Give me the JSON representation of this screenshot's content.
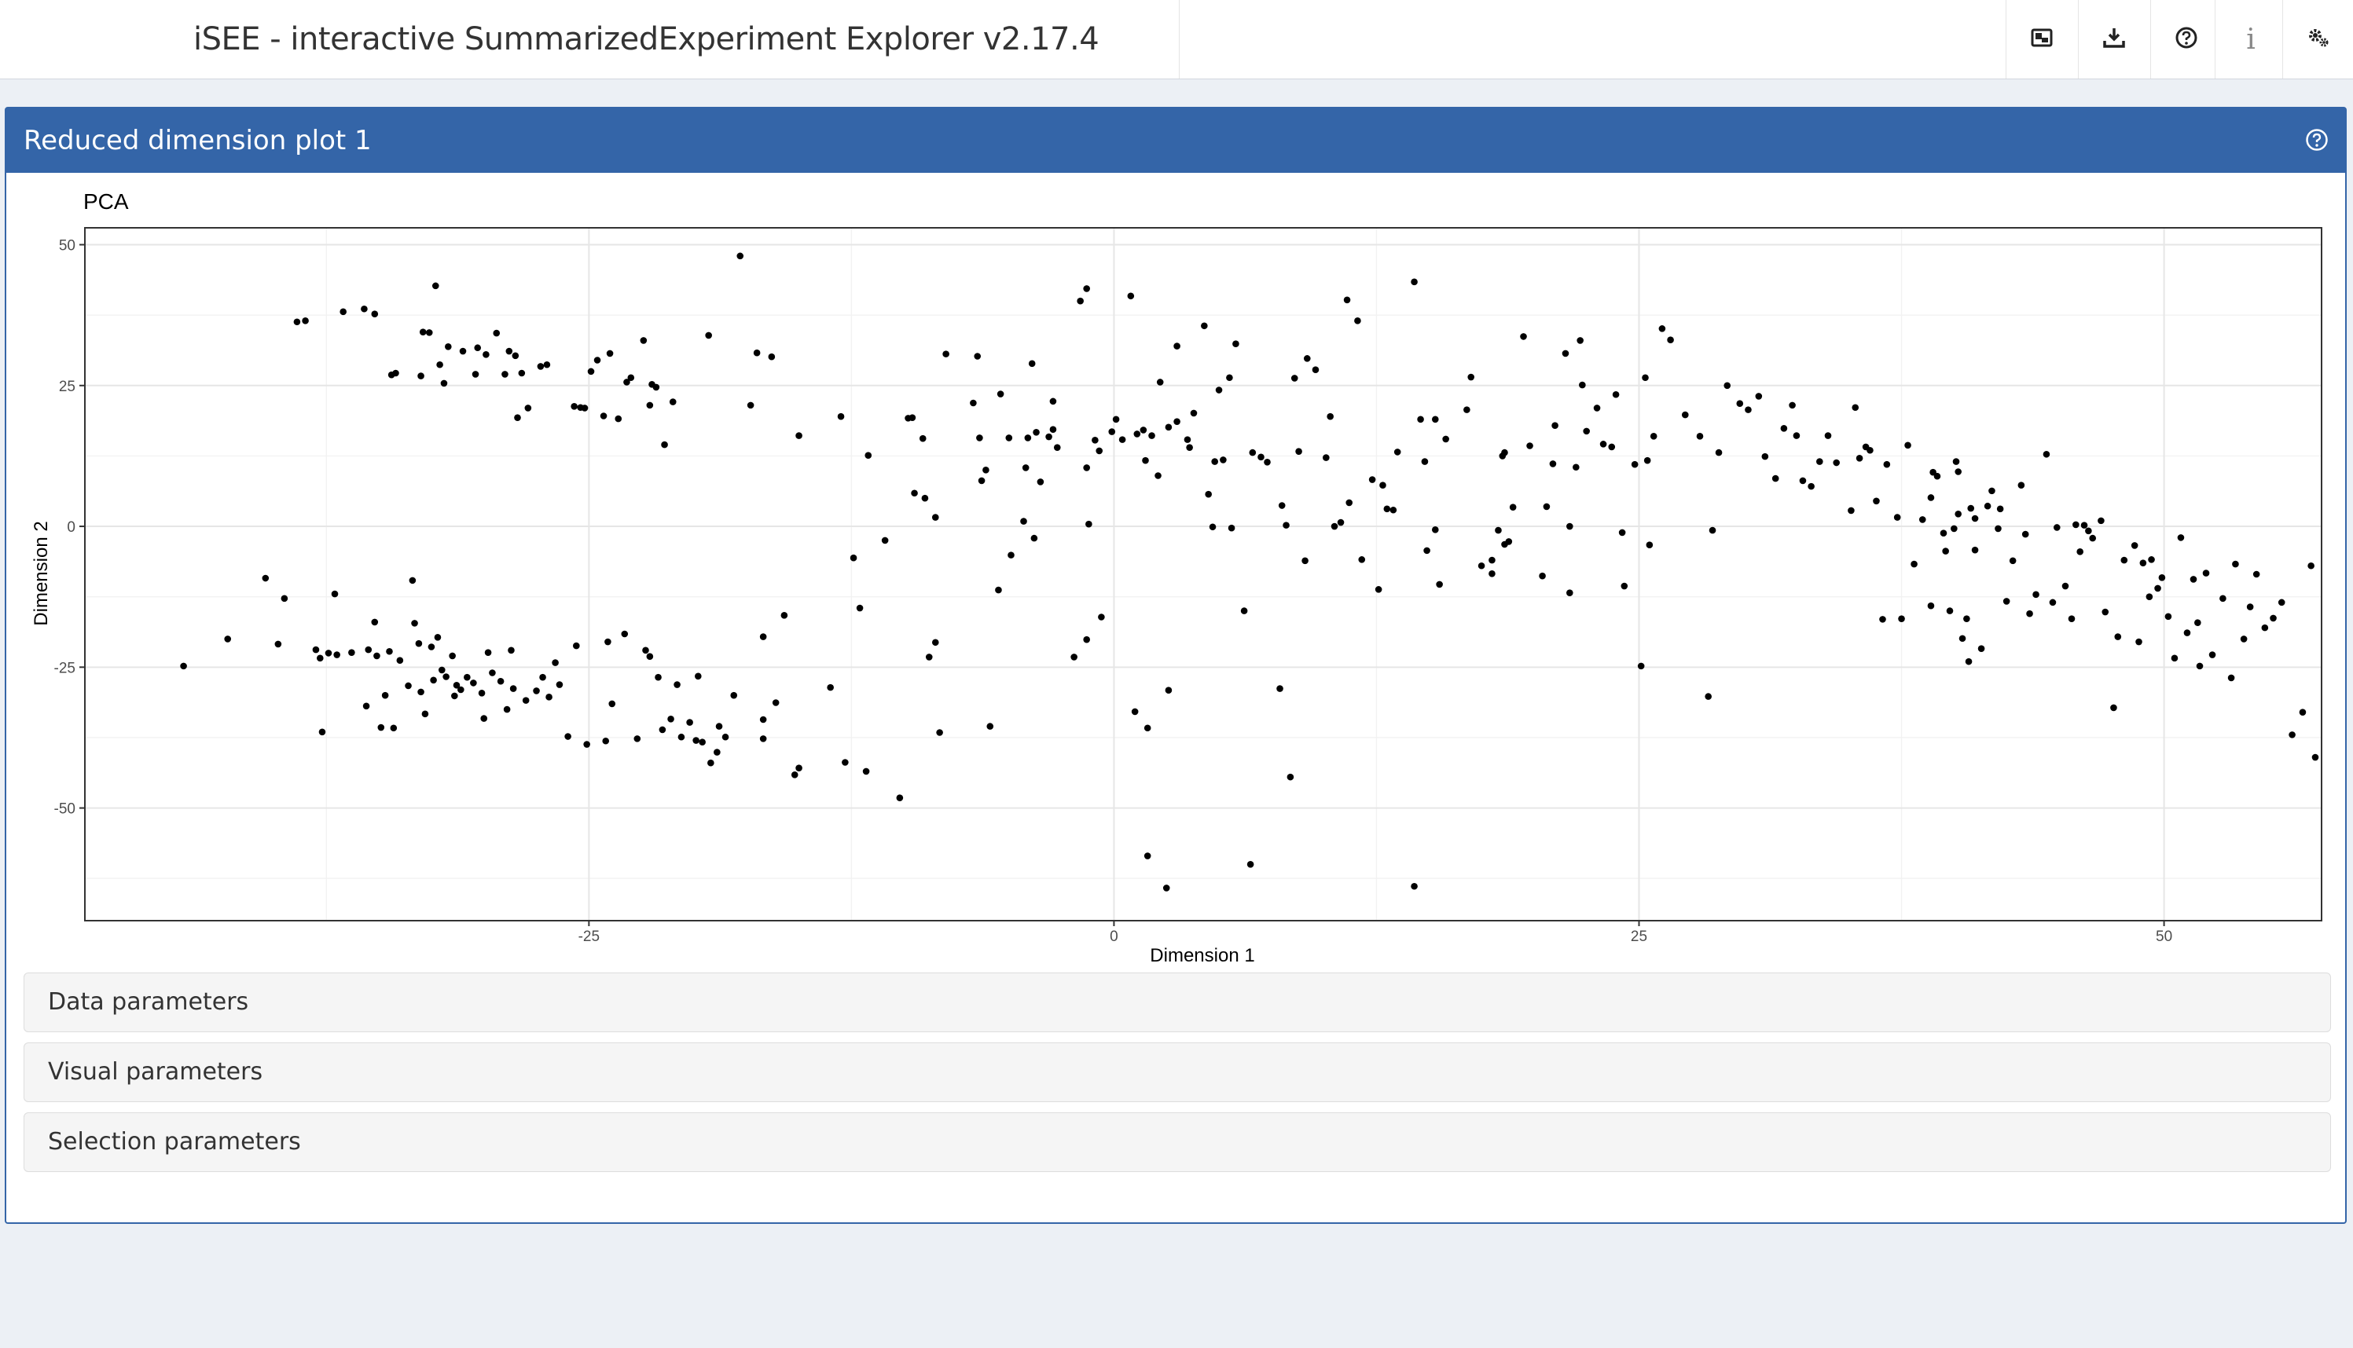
{
  "header": {
    "title": "iSEE - interactive SummarizedExperiment Explorer v2.17.4",
    "buttons": [
      {
        "name": "export-icon"
      },
      {
        "name": "download-icon"
      },
      {
        "name": "help-icon"
      },
      {
        "name": "info-icon",
        "glyph": "i"
      },
      {
        "name": "settings-icon"
      }
    ]
  },
  "panel": {
    "title": "Reduced dimension plot 1",
    "header_color": "#3465a8"
  },
  "accordions": {
    "data": "Data parameters",
    "visual": "Visual parameters",
    "selection": "Selection parameters"
  },
  "chart_data": {
    "type": "scatter",
    "title": "PCA",
    "xlabel": "Dimension 1",
    "ylabel": "Dimension 2",
    "xlim": [
      -49,
      57.5
    ],
    "ylim": [
      -70,
      53
    ],
    "xticks": [
      -25,
      0,
      25,
      50
    ],
    "yticks": [
      50,
      25,
      0,
      -25,
      -50
    ],
    "grid": true,
    "point_color": "#000000",
    "points": [
      [
        -44.3,
        -24.8
      ],
      [
        -42.2,
        -20.0
      ],
      [
        -40.4,
        -9.2
      ],
      [
        -39.5,
        -12.8
      ],
      [
        -39.8,
        -20.9
      ],
      [
        -38.9,
        36.3
      ],
      [
        -38.5,
        36.5
      ],
      [
        -38.0,
        -21.9
      ],
      [
        -37.8,
        -23.4
      ],
      [
        -37.7,
        -36.5
      ],
      [
        -37.4,
        -22.5
      ],
      [
        -37.1,
        -12.0
      ],
      [
        -37.0,
        -22.8
      ],
      [
        -36.7,
        38.1
      ],
      [
        -36.3,
        -22.4
      ],
      [
        -35.7,
        38.6
      ],
      [
        -35.6,
        -31.9
      ],
      [
        -35.5,
        -21.9
      ],
      [
        -35.2,
        37.7
      ],
      [
        -35.2,
        -17.0
      ],
      [
        -35.1,
        -23.0
      ],
      [
        -34.9,
        -35.7
      ],
      [
        -34.7,
        -30.0
      ],
      [
        -34.5,
        -22.2
      ],
      [
        -34.4,
        26.9
      ],
      [
        -34.3,
        -35.8
      ],
      [
        -34.2,
        27.2
      ],
      [
        -34.0,
        -23.8
      ],
      [
        -33.6,
        -28.3
      ],
      [
        -33.4,
        -9.6
      ],
      [
        -33.3,
        -17.2
      ],
      [
        -33.1,
        -20.8
      ],
      [
        -33.0,
        26.7
      ],
      [
        -33.0,
        -29.4
      ],
      [
        -32.9,
        34.5
      ],
      [
        -32.8,
        -33.3
      ],
      [
        -32.6,
        34.4
      ],
      [
        -32.5,
        -21.4
      ],
      [
        -32.4,
        -27.3
      ],
      [
        -32.3,
        42.7
      ],
      [
        -32.2,
        -19.7
      ],
      [
        -32.1,
        28.7
      ],
      [
        -32.0,
        -25.5
      ],
      [
        -31.9,
        25.4
      ],
      [
        -31.8,
        -26.7
      ],
      [
        -31.7,
        31.9
      ],
      [
        -31.5,
        -23.0
      ],
      [
        -31.4,
        -30.1
      ],
      [
        -31.3,
        -28.2
      ],
      [
        -31.1,
        -29.0
      ],
      [
        -31.0,
        31.1
      ],
      [
        -30.8,
        -26.8
      ],
      [
        -30.5,
        -27.8
      ],
      [
        -30.4,
        27.0
      ],
      [
        -30.3,
        31.7
      ],
      [
        -30.1,
        -29.6
      ],
      [
        -30.0,
        -34.1
      ],
      [
        -29.9,
        30.5
      ],
      [
        -29.8,
        -22.4
      ],
      [
        -29.6,
        -26.0
      ],
      [
        -29.4,
        34.3
      ],
      [
        -29.2,
        -27.5
      ],
      [
        -29.0,
        27.0
      ],
      [
        -28.9,
        -32.5
      ],
      [
        -28.8,
        31.1
      ],
      [
        -28.7,
        -22.0
      ],
      [
        -28.6,
        -28.8
      ],
      [
        -28.5,
        30.3
      ],
      [
        -28.4,
        19.3
      ],
      [
        -28.2,
        27.2
      ],
      [
        -28.0,
        -30.9
      ],
      [
        -27.9,
        21.0
      ],
      [
        -27.5,
        -29.2
      ],
      [
        -27.3,
        28.4
      ],
      [
        -27.2,
        -26.8
      ],
      [
        -27.0,
        28.7
      ],
      [
        -26.9,
        -30.3
      ],
      [
        -26.6,
        -24.2
      ],
      [
        -26.4,
        -28.1
      ],
      [
        -26.0,
        -37.3
      ],
      [
        -25.7,
        21.3
      ],
      [
        -25.6,
        -21.2
      ],
      [
        -25.4,
        21.1
      ],
      [
        -25.2,
        21.0
      ],
      [
        -25.1,
        -38.7
      ],
      [
        -24.9,
        27.5
      ],
      [
        -24.6,
        29.5
      ],
      [
        -24.3,
        19.6
      ],
      [
        -24.2,
        -38.1
      ],
      [
        -24.1,
        -20.5
      ],
      [
        -24.0,
        30.7
      ],
      [
        -23.9,
        -31.5
      ],
      [
        -23.6,
        19.1
      ],
      [
        -23.3,
        -19.1
      ],
      [
        -23.2,
        25.6
      ],
      [
        -23.0,
        26.4
      ],
      [
        -22.7,
        -37.7
      ],
      [
        -22.4,
        33.0
      ],
      [
        -22.3,
        -22.0
      ],
      [
        -22.1,
        -23.1
      ],
      [
        -22.1,
        21.5
      ],
      [
        -22.0,
        25.2
      ],
      [
        -21.8,
        24.7
      ],
      [
        -21.7,
        -26.8
      ],
      [
        -21.5,
        -36.1
      ],
      [
        -21.4,
        14.5
      ],
      [
        -21.1,
        -34.2
      ],
      [
        -21.0,
        22.1
      ],
      [
        -20.8,
        -28.1
      ],
      [
        -20.6,
        -37.4
      ],
      [
        -20.2,
        -34.8
      ],
      [
        -19.9,
        -38.0
      ],
      [
        -19.8,
        -26.6
      ],
      [
        -19.6,
        -38.3
      ],
      [
        -19.3,
        33.9
      ],
      [
        -19.2,
        -42.0
      ],
      [
        -18.9,
        -40.1
      ],
      [
        -18.8,
        -35.5
      ],
      [
        -18.5,
        -37.4
      ],
      [
        -18.1,
        -30.0
      ],
      [
        -17.8,
        48.0
      ],
      [
        -17.3,
        21.5
      ],
      [
        -17.0,
        30.8
      ],
      [
        -16.7,
        -37.7
      ],
      [
        -16.7,
        -34.3
      ],
      [
        -16.7,
        -19.6
      ],
      [
        -16.3,
        30.1
      ],
      [
        -16.1,
        -31.3
      ],
      [
        -15.7,
        -15.8
      ],
      [
        -15.2,
        -44.1
      ],
      [
        -15.0,
        -42.9
      ],
      [
        -15.0,
        16.1
      ],
      [
        -13.5,
        -28.6
      ],
      [
        -13.0,
        19.5
      ],
      [
        -12.8,
        -41.9
      ],
      [
        -12.4,
        -5.6
      ],
      [
        -12.1,
        -14.5
      ],
      [
        -11.8,
        -43.5
      ],
      [
        -11.7,
        12.6
      ],
      [
        -10.9,
        -2.5
      ],
      [
        -10.2,
        -48.2
      ],
      [
        -9.8,
        19.2
      ],
      [
        -9.6,
        19.3
      ],
      [
        -9.5,
        5.9
      ],
      [
        -9.1,
        15.6
      ],
      [
        -9.0,
        5.0
      ],
      [
        -8.8,
        -23.2
      ],
      [
        -8.5,
        -20.6
      ],
      [
        -8.5,
        1.6
      ],
      [
        -8.3,
        -36.6
      ],
      [
        -8.0,
        30.6
      ],
      [
        -6.7,
        21.9
      ],
      [
        -6.5,
        30.2
      ],
      [
        -6.4,
        15.7
      ],
      [
        -6.3,
        8.1
      ],
      [
        -6.1,
        10.0
      ],
      [
        -5.9,
        -35.5
      ],
      [
        -5.5,
        -11.3
      ],
      [
        -5.4,
        23.5
      ],
      [
        -5.0,
        15.7
      ],
      [
        -4.9,
        -5.1
      ],
      [
        -4.3,
        0.9
      ],
      [
        -4.2,
        10.4
      ],
      [
        -4.1,
        15.7
      ],
      [
        -3.9,
        28.9
      ],
      [
        -3.8,
        -2.1
      ],
      [
        -3.7,
        16.7
      ],
      [
        -3.5,
        7.9
      ],
      [
        -3.1,
        15.9
      ],
      [
        -2.9,
        17.2
      ],
      [
        -2.9,
        22.2
      ],
      [
        -2.7,
        14.0
      ],
      [
        -1.9,
        -23.2
      ],
      [
        -1.6,
        40.0
      ],
      [
        -1.3,
        -20.1
      ],
      [
        -1.3,
        10.4
      ],
      [
        -1.3,
        42.2
      ],
      [
        -1.2,
        0.4
      ],
      [
        -0.9,
        15.3
      ],
      [
        -0.7,
        13.4
      ],
      [
        -0.6,
        -16.1
      ],
      [
        -0.1,
        16.8
      ],
      [
        0.1,
        19.0
      ],
      [
        0.4,
        15.4
      ],
      [
        0.8,
        40.9
      ],
      [
        1.0,
        -32.9
      ],
      [
        1.1,
        16.4
      ],
      [
        1.4,
        17.1
      ],
      [
        1.5,
        11.7
      ],
      [
        1.6,
        -35.8
      ],
      [
        1.6,
        -58.5
      ],
      [
        1.8,
        16.1
      ],
      [
        2.1,
        9.0
      ],
      [
        2.2,
        25.6
      ],
      [
        2.5,
        -64.2
      ],
      [
        2.6,
        -29.1
      ],
      [
        2.6,
        17.6
      ],
      [
        3.0,
        32.0
      ],
      [
        3.0,
        18.6
      ],
      [
        3.5,
        15.4
      ],
      [
        3.6,
        14.0
      ],
      [
        3.8,
        20.1
      ],
      [
        4.3,
        35.6
      ],
      [
        4.5,
        5.7
      ],
      [
        4.7,
        -0.1
      ],
      [
        4.8,
        11.5
      ],
      [
        5.0,
        24.2
      ],
      [
        5.2,
        11.8
      ],
      [
        5.5,
        26.4
      ],
      [
        5.6,
        -0.3
      ],
      [
        5.8,
        32.4
      ],
      [
        6.2,
        -15.0
      ],
      [
        6.5,
        -60.0
      ],
      [
        6.6,
        13.1
      ],
      [
        7.0,
        12.3
      ],
      [
        7.3,
        11.4
      ],
      [
        7.9,
        -28.8
      ],
      [
        8.0,
        3.7
      ],
      [
        8.2,
        0.2
      ],
      [
        8.4,
        -44.5
      ],
      [
        8.6,
        26.3
      ],
      [
        8.8,
        13.3
      ],
      [
        9.1,
        -6.1
      ],
      [
        9.2,
        29.8
      ],
      [
        9.6,
        27.8
      ],
      [
        10.1,
        12.2
      ],
      [
        10.3,
        19.5
      ],
      [
        10.5,
        0.0
      ],
      [
        10.8,
        0.7
      ],
      [
        11.1,
        40.2
      ],
      [
        11.2,
        4.2
      ],
      [
        11.6,
        36.5
      ],
      [
        11.8,
        -5.9
      ],
      [
        12.3,
        8.3
      ],
      [
        12.6,
        -11.2
      ],
      [
        12.8,
        7.3
      ],
      [
        13.0,
        3.1
      ],
      [
        13.3,
        2.9
      ],
      [
        13.5,
        13.2
      ],
      [
        14.3,
        43.4
      ],
      [
        14.3,
        -63.9
      ],
      [
        14.6,
        19.0
      ],
      [
        14.8,
        11.5
      ],
      [
        14.9,
        -4.3
      ],
      [
        15.3,
        -0.6
      ],
      [
        15.3,
        19.0
      ],
      [
        15.5,
        -10.3
      ],
      [
        15.8,
        15.5
      ],
      [
        16.8,
        20.7
      ],
      [
        17.0,
        26.5
      ],
      [
        17.5,
        -7.0
      ],
      [
        18.0,
        -8.4
      ],
      [
        18.0,
        -6.0
      ],
      [
        18.3,
        -0.7
      ],
      [
        18.5,
        12.5
      ],
      [
        18.6,
        13.1
      ],
      [
        18.6,
        -3.2
      ],
      [
        18.8,
        -2.7
      ],
      [
        19.0,
        3.4
      ],
      [
        19.5,
        33.7
      ],
      [
        19.8,
        14.3
      ],
      [
        20.4,
        -8.8
      ],
      [
        20.6,
        3.5
      ],
      [
        20.9,
        11.1
      ],
      [
        21.0,
        17.9
      ],
      [
        21.5,
        30.7
      ],
      [
        21.7,
        0.0
      ],
      [
        21.7,
        -11.8
      ],
      [
        22.0,
        10.5
      ],
      [
        22.2,
        33.0
      ],
      [
        22.3,
        25.1
      ],
      [
        22.5,
        16.9
      ],
      [
        23.0,
        21.0
      ],
      [
        23.3,
        14.6
      ],
      [
        23.7,
        14.1
      ],
      [
        23.9,
        23.4
      ],
      [
        24.2,
        -1.1
      ],
      [
        24.3,
        -10.6
      ],
      [
        24.8,
        11.0
      ],
      [
        25.1,
        -24.8
      ],
      [
        25.3,
        26.4
      ],
      [
        25.4,
        11.7
      ],
      [
        25.5,
        -3.3
      ],
      [
        25.7,
        16.0
      ],
      [
        26.1,
        35.1
      ],
      [
        26.5,
        33.1
      ],
      [
        27.2,
        19.8
      ],
      [
        27.9,
        16.0
      ],
      [
        28.3,
        -30.2
      ],
      [
        28.5,
        -0.7
      ],
      [
        28.8,
        13.1
      ],
      [
        29.2,
        25.0
      ],
      [
        29.8,
        21.8
      ],
      [
        30.2,
        20.7
      ],
      [
        30.7,
        23.1
      ],
      [
        31.0,
        12.4
      ],
      [
        31.5,
        8.5
      ],
      [
        31.9,
        17.4
      ],
      [
        32.3,
        21.5
      ],
      [
        32.5,
        16.1
      ],
      [
        32.8,
        8.1
      ],
      [
        33.2,
        7.1
      ],
      [
        33.6,
        11.5
      ],
      [
        34.0,
        16.1
      ],
      [
        34.4,
        11.3
      ],
      [
        35.1,
        2.8
      ],
      [
        35.3,
        21.1
      ],
      [
        35.5,
        12.1
      ],
      [
        35.8,
        14.1
      ],
      [
        36.0,
        13.5
      ],
      [
        36.3,
        4.5
      ],
      [
        36.6,
        -16.5
      ],
      [
        36.8,
        11.0
      ],
      [
        37.3,
        1.6
      ],
      [
        37.5,
        -16.4
      ],
      [
        37.8,
        14.4
      ],
      [
        38.1,
        -6.7
      ],
      [
        38.5,
        1.2
      ],
      [
        38.9,
        -14.1
      ],
      [
        38.9,
        5.1
      ],
      [
        39.0,
        9.6
      ],
      [
        39.2,
        8.9
      ],
      [
        39.5,
        -1.2
      ],
      [
        39.6,
        -4.4
      ],
      [
        39.8,
        -15.0
      ],
      [
        40.0,
        -0.4
      ],
      [
        40.1,
        11.5
      ],
      [
        40.2,
        2.2
      ],
      [
        40.2,
        9.7
      ],
      [
        40.4,
        -19.9
      ],
      [
        40.6,
        -16.4
      ],
      [
        40.7,
        -24.0
      ],
      [
        40.8,
        3.2
      ],
      [
        41.0,
        -4.2
      ],
      [
        41.0,
        1.4
      ],
      [
        41.3,
        -21.7
      ],
      [
        41.6,
        3.6
      ],
      [
        41.8,
        6.3
      ],
      [
        42.1,
        -0.4
      ],
      [
        42.2,
        3.1
      ],
      [
        42.5,
        -13.3
      ],
      [
        42.8,
        -6.1
      ],
      [
        43.2,
        7.3
      ],
      [
        43.4,
        -1.4
      ],
      [
        43.6,
        -15.5
      ],
      [
        43.9,
        -12.1
      ],
      [
        44.4,
        12.8
      ],
      [
        44.7,
        -13.5
      ],
      [
        44.9,
        -0.2
      ],
      [
        45.3,
        -10.6
      ],
      [
        45.6,
        -16.4
      ],
      [
        45.8,
        0.3
      ],
      [
        46.0,
        -4.5
      ],
      [
        46.2,
        0.2
      ],
      [
        46.4,
        -0.8
      ],
      [
        46.6,
        -2.1
      ],
      [
        47.0,
        1.0
      ],
      [
        47.2,
        -15.2
      ],
      [
        47.6,
        -32.2
      ],
      [
        47.8,
        -19.6
      ],
      [
        48.1,
        -6.0
      ],
      [
        48.6,
        -3.4
      ],
      [
        48.8,
        -20.5
      ],
      [
        49.0,
        -6.5
      ],
      [
        49.3,
        -12.5
      ],
      [
        49.4,
        -5.9
      ],
      [
        49.7,
        -11.0
      ],
      [
        49.9,
        -9.1
      ],
      [
        50.2,
        -16.0
      ],
      [
        50.5,
        -23.4
      ],
      [
        50.8,
        -2.0
      ],
      [
        51.1,
        -18.9
      ],
      [
        51.4,
        -9.4
      ],
      [
        51.6,
        -17.1
      ],
      [
        51.7,
        -24.8
      ],
      [
        52.0,
        -8.3
      ],
      [
        52.3,
        -22.8
      ],
      [
        52.8,
        -12.8
      ],
      [
        53.2,
        -26.9
      ],
      [
        53.4,
        -6.7
      ],
      [
        53.8,
        -20.0
      ],
      [
        54.1,
        -14.3
      ],
      [
        54.4,
        -8.5
      ],
      [
        54.8,
        -18.0
      ],
      [
        55.2,
        -16.3
      ],
      [
        55.6,
        -13.5
      ],
      [
        56.1,
        -37.0
      ],
      [
        56.6,
        -33.0
      ],
      [
        57.0,
        -7.0
      ],
      [
        57.2,
        -41.0
      ]
    ]
  }
}
